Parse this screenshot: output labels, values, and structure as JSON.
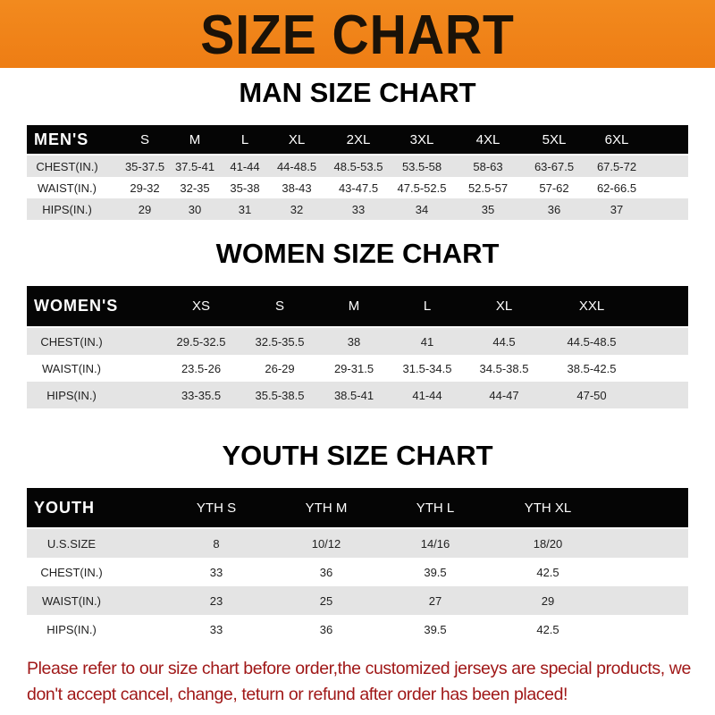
{
  "banner_title": "SIZE CHART",
  "men": {
    "title": "MAN SIZE CHART",
    "header": [
      "MEN'S",
      "S",
      "M",
      "L",
      "XL",
      "2XL",
      "3XL",
      "4XL",
      "5XL",
      "6XL"
    ],
    "rows": [
      [
        "CHEST(IN.)",
        "35-37.5",
        "37.5-41",
        "41-44",
        "44-48.5",
        "48.5-53.5",
        "53.5-58",
        "58-63",
        "63-67.5",
        "67.5-72"
      ],
      [
        "WAIST(IN.)",
        "29-32",
        "32-35",
        "35-38",
        "38-43",
        "43-47.5",
        "47.5-52.5",
        "52.5-57",
        "57-62",
        "62-66.5"
      ],
      [
        "HIPS(IN.)",
        "29",
        "30",
        "31",
        "32",
        "33",
        "34",
        "35",
        "36",
        "37"
      ]
    ]
  },
  "women": {
    "title": "WOMEN SIZE CHART",
    "header": [
      "WOMEN'S",
      "XS",
      "S",
      "M",
      "L",
      "XL",
      "XXL"
    ],
    "rows": [
      [
        "CHEST(IN.)",
        "29.5-32.5",
        "32.5-35.5",
        "38",
        "41",
        "44.5",
        "44.5-48.5"
      ],
      [
        "WAIST(IN.)",
        "23.5-26",
        "26-29",
        "29-31.5",
        "31.5-34.5",
        "34.5-38.5",
        "38.5-42.5"
      ],
      [
        "HIPS(IN.)",
        "33-35.5",
        "35.5-38.5",
        "38.5-41",
        "41-44",
        "44-47",
        "47-50"
      ]
    ]
  },
  "youth": {
    "title": "YOUTH SIZE CHART",
    "header": [
      "YOUTH",
      "YTH S",
      "YTH M",
      "YTH L",
      "YTH XL"
    ],
    "rows": [
      [
        "U.S.SIZE",
        "8",
        "10/12",
        "14/16",
        "18/20"
      ],
      [
        "CHEST(IN.)",
        "33",
        "36",
        "39.5",
        "42.5"
      ],
      [
        "WAIST(IN.)",
        "23",
        "25",
        "27",
        "29"
      ],
      [
        "HIPS(IN.)",
        "33",
        "36",
        "39.5",
        "42.5"
      ]
    ]
  },
  "notice": "Please refer to our size chart before order,the customized jerseys are special products, we don't accept cancel, change, teturn or refund after order has been placed!",
  "colors": {
    "banner": "#ef821a",
    "header_row": "#050505",
    "stripe": "#e4e4e4",
    "notice": "#a01818"
  }
}
